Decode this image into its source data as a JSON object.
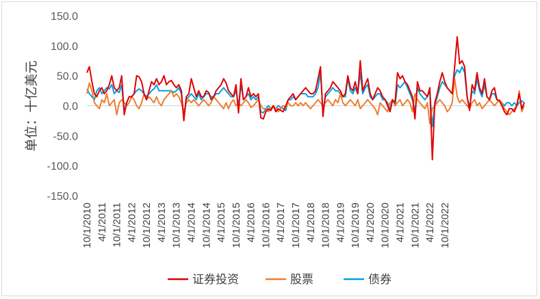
{
  "chart_data": {
    "type": "line",
    "title": "",
    "xlabel": "",
    "ylabel": "单位：十亿美元",
    "ylim": [
      -150,
      150
    ],
    "yticks": [
      150,
      100,
      50,
      0,
      -50,
      -100,
      -150
    ],
    "ytick_labels": [
      "150.0",
      "100.0",
      "50.0",
      "0.0",
      "-50.0",
      "-100.0",
      "-150.0"
    ],
    "xtick_labels": [
      "10/1/2010",
      "4/1/2011",
      "10/1/2011",
      "4/1/2012",
      "10/1/2012",
      "4/1/2013",
      "10/1/2013",
      "4/1/2014",
      "10/1/2014",
      "4/1/2015",
      "10/1/2015",
      "4/1/2016",
      "10/1/2016",
      "4/1/2017",
      "10/1/2017",
      "4/1/2018",
      "10/1/2018",
      "4/1/2019",
      "10/1/2019",
      "4/1/2020",
      "10/1/2020",
      "4/1/2021",
      "10/1/2021",
      "4/1/2022",
      "10/1/2022"
    ],
    "x_start": "10/1/2010",
    "x_frequency": "monthly",
    "grid": false,
    "legend_position": "bottom",
    "series": [
      {
        "name": "证券投资",
        "color": "#e00000",
        "values": [
          55,
          65,
          40,
          20,
          15,
          25,
          30,
          20,
          25,
          35,
          50,
          30,
          25,
          30,
          50,
          -15,
          5,
          15,
          15,
          20,
          50,
          48,
          40,
          20,
          10,
          25,
          40,
          35,
          45,
          35,
          40,
          50,
          35,
          40,
          42,
          35,
          30,
          35,
          25,
          -25,
          15,
          20,
          45,
          30,
          15,
          25,
          15,
          15,
          25,
          22,
          10,
          15,
          25,
          30,
          35,
          45,
          38,
          25,
          20,
          15,
          35,
          -12,
          45,
          10,
          15,
          30,
          15,
          20,
          15,
          20,
          -20,
          -22,
          -10,
          -5,
          -8,
          0,
          -10,
          -5,
          -8,
          -10,
          0,
          10,
          15,
          20,
          10,
          15,
          20,
          25,
          30,
          25,
          20,
          20,
          25,
          45,
          65,
          -18,
          20,
          25,
          30,
          40,
          35,
          30,
          25,
          15,
          20,
          50,
          30,
          25,
          40,
          20,
          75,
          25,
          35,
          45,
          20,
          10,
          20,
          30,
          25,
          15,
          10,
          0,
          -10,
          10,
          5,
          55,
          45,
          50,
          40,
          35,
          25,
          15,
          -22,
          40,
          25,
          25,
          20,
          15,
          30,
          -90,
          5,
          20,
          40,
          55,
          40,
          30,
          25,
          20,
          65,
          115,
          70,
          75,
          65,
          15,
          -8,
          35,
          25,
          55,
          30,
          20,
          45,
          15,
          10,
          25,
          30,
          10,
          8,
          0,
          -10,
          -15,
          -5,
          -5,
          -10,
          0,
          20,
          -5,
          5
        ]
      },
      {
        "name": "股票",
        "color": "#ed7d31",
        "values": [
          20,
          38,
          25,
          5,
          0,
          -5,
          10,
          5,
          20,
          0,
          5,
          10,
          -15,
          5,
          10,
          5,
          0,
          5,
          15,
          10,
          0,
          -5,
          5,
          20,
          10,
          15,
          10,
          5,
          15,
          5,
          0,
          10,
          15,
          20,
          25,
          15,
          20,
          15,
          5,
          -10,
          5,
          10,
          5,
          10,
          5,
          0,
          5,
          10,
          5,
          0,
          5,
          15,
          10,
          5,
          0,
          -5,
          5,
          -5,
          5,
          10,
          0,
          5,
          0,
          5,
          10,
          5,
          -3,
          0,
          5,
          10,
          0,
          -5,
          -5,
          -10,
          -5,
          0,
          -5,
          -10,
          -5,
          0,
          -3,
          5,
          0,
          0,
          5,
          0,
          5,
          0,
          5,
          0,
          -5,
          0,
          5,
          10,
          5,
          0,
          5,
          10,
          5,
          0,
          10,
          5,
          20,
          5,
          0,
          5,
          10,
          5,
          0,
          10,
          -5,
          0,
          5,
          10,
          5,
          0,
          -5,
          -15,
          5,
          0,
          -5,
          -10,
          5,
          10,
          0,
          5,
          10,
          0,
          5,
          10,
          5,
          -10,
          20,
          10,
          5,
          0,
          -5,
          5,
          -30,
          -5,
          0,
          5,
          10,
          5,
          0,
          -10,
          -5,
          5,
          45,
          15,
          5,
          10,
          5,
          0,
          -5,
          5,
          10,
          0,
          5,
          -5,
          0,
          5,
          10,
          5,
          0,
          5,
          10,
          5,
          -5,
          -10,
          -15,
          -10,
          -5,
          0,
          25,
          -10,
          0
        ]
      },
      {
        "name": "债券",
        "color": "#00a0e0",
        "values": [
          28,
          20,
          15,
          10,
          25,
          30,
          20,
          25,
          30,
          28,
          35,
          20,
          25,
          22,
          35,
          -10,
          5,
          15,
          15,
          20,
          25,
          28,
          25,
          20,
          15,
          20,
          25,
          28,
          35,
          25,
          25,
          25,
          25,
          25,
          25,
          22,
          25,
          30,
          20,
          -20,
          10,
          15,
          20,
          15,
          10,
          20,
          10,
          15,
          20,
          20,
          15,
          15,
          20,
          20,
          25,
          30,
          25,
          20,
          15,
          15,
          25,
          0,
          35,
          10,
          15,
          20,
          10,
          15,
          10,
          15,
          -10,
          -12,
          -5,
          0,
          -5,
          0,
          -5,
          0,
          -3,
          -5,
          -8,
          10,
          10,
          15,
          10,
          15,
          20,
          20,
          20,
          15,
          15,
          15,
          20,
          30,
          55,
          -10,
          15,
          20,
          25,
          30,
          25,
          25,
          20,
          15,
          15,
          45,
          25,
          20,
          30,
          20,
          55,
          20,
          30,
          35,
          15,
          10,
          15,
          20,
          20,
          10,
          10,
          5,
          -5,
          10,
          0,
          35,
          30,
          35,
          40,
          30,
          20,
          10,
          -10,
          30,
          20,
          15,
          10,
          15,
          25,
          -35,
          0,
          15,
          30,
          40,
          35,
          30,
          25,
          20,
          50,
          60,
          55,
          65,
          55,
          15,
          -3,
          25,
          20,
          45,
          25,
          15,
          35,
          15,
          10,
          20,
          20,
          10,
          8,
          5,
          0,
          5,
          5,
          0,
          5,
          0,
          5,
          8,
          5
        ]
      }
    ]
  }
}
